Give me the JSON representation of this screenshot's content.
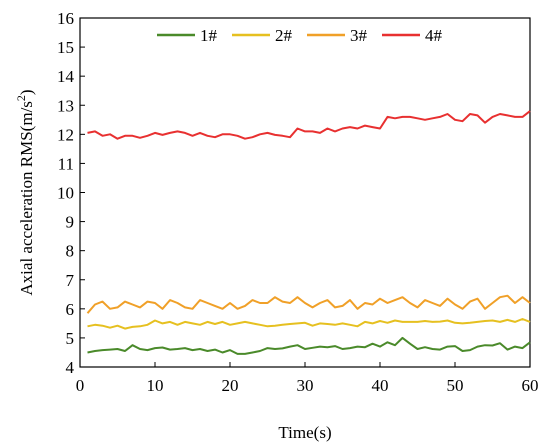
{
  "chart_data": {
    "type": "line",
    "xlabel": "Time(s)",
    "ylabel": "Axial acceleration RMS(m/s²)",
    "ylabel_parts": {
      "prefix": "Axial acceleration RMS(m/s",
      "superscript": "2",
      "suffix": ")"
    },
    "xlim": [
      0,
      60
    ],
    "ylim": [
      4,
      16
    ],
    "xticks": [
      "0",
      "10",
      "20",
      "30",
      "40",
      "50",
      "60"
    ],
    "yticks": [
      "4",
      "5",
      "6",
      "7",
      "8",
      "9",
      "10",
      "11",
      "12",
      "13",
      "14",
      "15",
      "16"
    ],
    "grid": false,
    "legend_position": "top",
    "x": [
      1,
      2,
      3,
      4,
      5,
      6,
      7,
      8,
      9,
      10,
      11,
      12,
      13,
      14,
      15,
      16,
      17,
      18,
      19,
      20,
      21,
      22,
      23,
      24,
      25,
      26,
      27,
      28,
      29,
      30,
      31,
      32,
      33,
      34,
      35,
      36,
      37,
      38,
      39,
      40,
      41,
      42,
      43,
      44,
      45,
      46,
      47,
      48,
      49,
      50,
      51,
      52,
      53,
      54,
      55,
      56,
      57,
      58,
      59,
      60
    ],
    "series": [
      {
        "name": "1#",
        "color": "#4a8a2a",
        "values": [
          4.5,
          4.55,
          4.58,
          4.6,
          4.62,
          4.55,
          4.75,
          4.62,
          4.58,
          4.65,
          4.67,
          4.6,
          4.62,
          4.65,
          4.58,
          4.62,
          4.55,
          4.6,
          4.5,
          4.58,
          4.45,
          4.45,
          4.5,
          4.55,
          4.65,
          4.62,
          4.64,
          4.7,
          4.75,
          4.62,
          4.66,
          4.7,
          4.68,
          4.72,
          4.62,
          4.65,
          4.7,
          4.68,
          4.8,
          4.7,
          4.85,
          4.75,
          5.0,
          4.8,
          4.62,
          4.68,
          4.62,
          4.6,
          4.7,
          4.72,
          4.55,
          4.58,
          4.7,
          4.75,
          4.74,
          4.82,
          4.6,
          4.7,
          4.65,
          4.85
        ]
      },
      {
        "name": "2#",
        "color": "#e6c020",
        "values": [
          5.4,
          5.45,
          5.42,
          5.35,
          5.42,
          5.32,
          5.38,
          5.4,
          5.45,
          5.6,
          5.5,
          5.55,
          5.45,
          5.55,
          5.5,
          5.45,
          5.55,
          5.48,
          5.55,
          5.45,
          5.5,
          5.55,
          5.5,
          5.45,
          5.4,
          5.42,
          5.45,
          5.48,
          5.5,
          5.52,
          5.42,
          5.5,
          5.48,
          5.45,
          5.5,
          5.45,
          5.4,
          5.55,
          5.5,
          5.58,
          5.52,
          5.6,
          5.55,
          5.55,
          5.55,
          5.58,
          5.55,
          5.56,
          5.6,
          5.52,
          5.5,
          5.52,
          5.55,
          5.58,
          5.6,
          5.55,
          5.62,
          5.55,
          5.65,
          5.55
        ]
      },
      {
        "name": "3#",
        "color": "#f0a028",
        "values": [
          5.85,
          6.15,
          6.25,
          6.0,
          6.05,
          6.25,
          6.15,
          6.05,
          6.25,
          6.2,
          6.0,
          6.3,
          6.2,
          6.05,
          6.0,
          6.3,
          6.2,
          6.1,
          6.0,
          6.2,
          6.0,
          6.1,
          6.3,
          6.2,
          6.2,
          6.4,
          6.25,
          6.2,
          6.4,
          6.2,
          6.05,
          6.2,
          6.3,
          6.05,
          6.1,
          6.3,
          6.0,
          6.2,
          6.15,
          6.35,
          6.2,
          6.3,
          6.4,
          6.2,
          6.05,
          6.3,
          6.2,
          6.1,
          6.35,
          6.15,
          6.0,
          6.25,
          6.35,
          6.0,
          6.2,
          6.4,
          6.45,
          6.2,
          6.4,
          6.2
        ]
      },
      {
        "name": "4#",
        "color": "#e83030",
        "values": [
          12.05,
          12.1,
          11.95,
          12.0,
          11.85,
          11.95,
          11.95,
          11.88,
          11.95,
          12.05,
          11.98,
          12.05,
          12.1,
          12.05,
          11.95,
          12.05,
          11.95,
          11.9,
          12.0,
          12.0,
          11.95,
          11.85,
          11.9,
          12.0,
          12.05,
          11.98,
          11.95,
          11.9,
          12.2,
          12.1,
          12.1,
          12.05,
          12.2,
          12.1,
          12.2,
          12.25,
          12.2,
          12.3,
          12.25,
          12.2,
          12.6,
          12.55,
          12.6,
          12.6,
          12.55,
          12.5,
          12.55,
          12.6,
          12.7,
          12.5,
          12.45,
          12.7,
          12.65,
          12.4,
          12.6,
          12.7,
          12.65,
          12.6,
          12.6,
          12.8
        ]
      }
    ]
  }
}
